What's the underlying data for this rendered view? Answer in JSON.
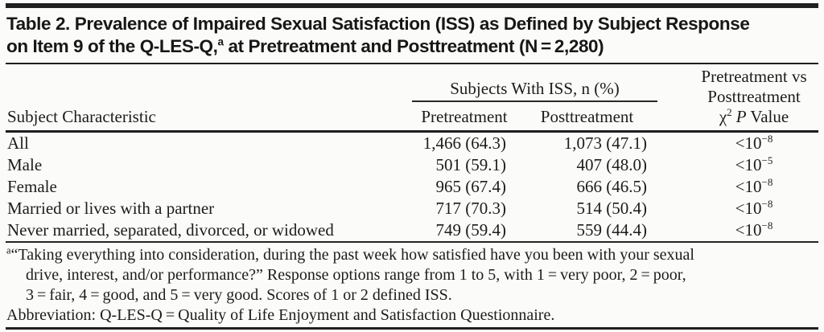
{
  "colors": {
    "background": "#fbfcf9",
    "text": "#1c1c1b",
    "rule": "#1f1f1f"
  },
  "table": {
    "title": {
      "line1": "Table 2. Prevalence of Impaired Sexual Satisfaction (ISS) as Defined by Subject Response",
      "line2_pre": "on Item 9 of the Q-LES-Q,",
      "sup": "a",
      "line2_post": " at Pretreatment and Posttreatment (N = 2,280)"
    },
    "header": {
      "col1": "Subject Characteristic",
      "spanner": "Subjects With ISS, n (%)",
      "col2": "Pretreatment",
      "col3": "Posttreatment",
      "col4": {
        "line1": "Pretreatment vs",
        "line2": "Posttreatment",
        "chi": "χ",
        "chi_sup": "2",
        "p": "P",
        "value_word": " Value"
      }
    },
    "rows": [
      {
        "label": "All",
        "pre": "1,466 (64.3)",
        "post": "1,073 (47.1)",
        "p_base": "<10",
        "p_exp": "−8"
      },
      {
        "label": "Male",
        "pre": "501 (59.1)",
        "post": "407 (48.0)",
        "p_base": "<10",
        "p_exp": "−5"
      },
      {
        "label": "Female",
        "pre": "965 (67.4)",
        "post": "666 (46.5)",
        "p_base": "<10",
        "p_exp": "−8"
      },
      {
        "label": "Married or lives with a partner",
        "pre": "717 (70.3)",
        "post": "514 (50.4)",
        "p_base": "<10",
        "p_exp": "−8"
      },
      {
        "label": "Never married, separated, divorced, or widowed",
        "pre": "749 (59.4)",
        "post": "559 (44.4)",
        "p_base": "<10",
        "p_exp": "−8"
      }
    ],
    "footnotes": {
      "marker": "a",
      "note_line1": "“Taking everything into consideration, during the past week how satisfied have you been with your sexual",
      "note_line2": "drive, interest, and/or performance?” Response options range from 1 to 5, with 1 = very poor, 2 = poor,",
      "note_line3": "3 = fair, 4 = good, and 5 = very good. Scores of 1 or 2 defined ISS.",
      "abbreviation": "Abbreviation: Q-LES-Q = Quality of Life Enjoyment and Satisfaction Questionnaire."
    }
  }
}
